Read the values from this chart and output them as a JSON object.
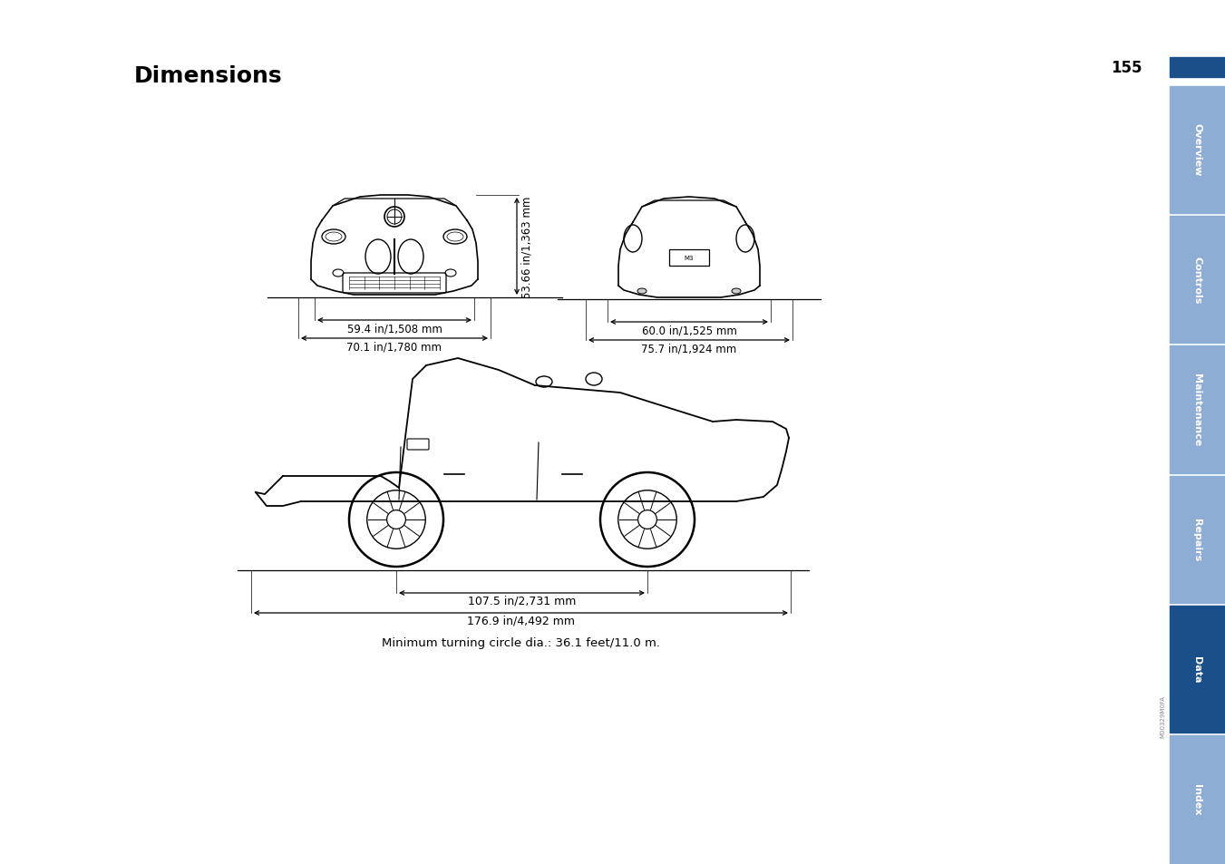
{
  "title": "Dimensions",
  "page_number": "155",
  "background_color": "#ffffff",
  "title_color": "#000000",
  "title_fontsize": 18,
  "sidebar_labels": [
    "Overview",
    "Controls",
    "Maintenance",
    "Repairs",
    "Data",
    "Index"
  ],
  "sidebar_colors": [
    "#8eadd4",
    "#8eadd4",
    "#8eadd4",
    "#8eadd4",
    "#1a4f8a",
    "#8eadd4"
  ],
  "sidebar_text_color": "#ffffff",
  "page_num_bar_color": "#1a4f8a",
  "page_num_text_color": "#000000",
  "dim_front_width1": "59.4 in/1,508 mm",
  "dim_front_width2": "70.1 in/1,780 mm",
  "dim_front_height": "53.66 in/1,363 mm",
  "dim_rear_width1": "60.0 in/1,525 mm",
  "dim_rear_width2": "75.7 in/1,924 mm",
  "dim_side_wb": "107.5 in/2,731 mm",
  "dim_side_len": "176.9 in/4,492 mm",
  "dim_turning": "Minimum turning circle dia.: 36.1 feet/11.0 m.",
  "small_text": "M00329M0FA",
  "annotation_fontsize": 9.5
}
